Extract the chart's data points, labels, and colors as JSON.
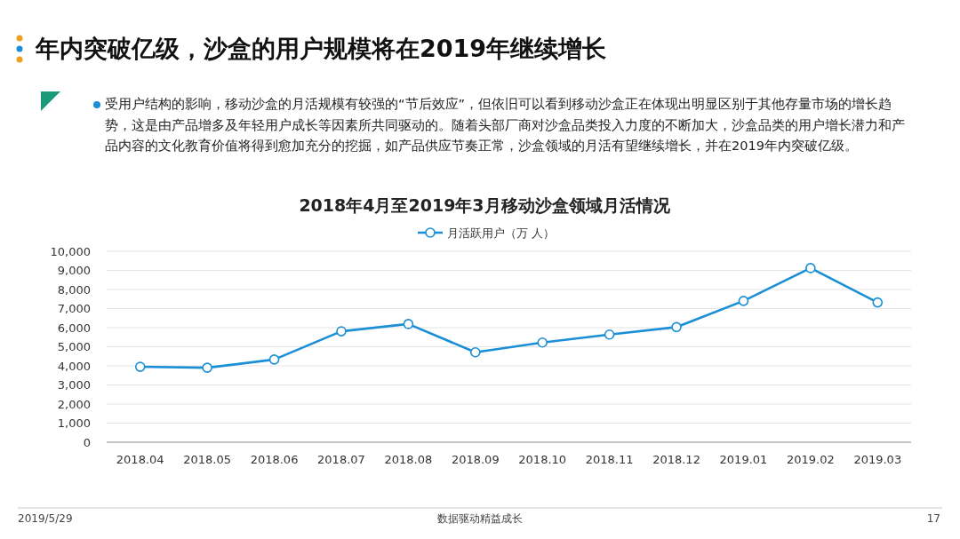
{
  "chart_data": {
    "type": "line",
    "title": "2018年4月至2019年3月移动沙盒领域月活情况",
    "annotations": [
      "年内突破亿级，沙盒的用户规模将在2019年继续增长",
      "受用户结构的影响，移动沙盒的月活规模有较强的“节后效应”，但依旧可以看到移动沙盒正在体现出明显区别于其他存量市场的增长趋势，这是由产品增多及年轻用户成长等因素所共同驱动的。随着头部厂商对沙盒品类投入力度的不断加大，沙盒品类的用户增长潜力和产品内容的文化教育价值将得到愈加充分的挖掘，如产品供应节奏正常，沙盒领域的月活有望继续增长，并在2019年内突破亿级。",
      "2019/5/29",
      "数据驱动精益成长",
      "17"
    ],
    "categories": [
      "2018.04",
      "2018.05",
      "2018.06",
      "2018.07",
      "2018.08",
      "2018.09",
      "2018.10",
      "2018.11",
      "2018.12",
      "2019.01",
      "2019.02",
      "2019.03"
    ],
    "series": [
      {
        "name": "月活跃用户（万 人）",
        "color": "#1a8fd6",
        "values": [
          3950,
          3900,
          4330,
          5810,
          6190,
          4710,
          5220,
          5640,
          6030,
          7400,
          9120,
          7320
        ]
      }
    ],
    "ylim": [
      0,
      10000
    ],
    "yticks": [
      {
        "value": 0,
        "label": "0"
      },
      {
        "value": 1000,
        "label": "1,000"
      },
      {
        "value": 2000,
        "label": "2,000"
      },
      {
        "value": 3000,
        "label": "3,000"
      },
      {
        "value": 4000,
        "label": "4,000"
      },
      {
        "value": 5000,
        "label": "5,000"
      },
      {
        "value": 6000,
        "label": "6,000"
      },
      {
        "value": 7000,
        "label": "7,000"
      },
      {
        "value": 8000,
        "label": "8,000"
      },
      {
        "value": 9000,
        "label": "9,000"
      },
      {
        "value": 10000,
        "label": "10,000"
      }
    ],
    "grid": "y",
    "legend": "top",
    "marker": "circle",
    "line_style": "solid"
  }
}
